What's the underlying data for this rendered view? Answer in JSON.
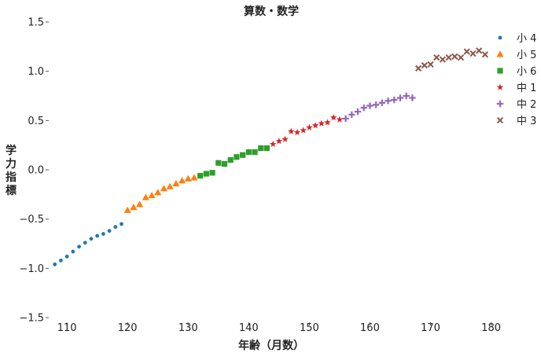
{
  "chart_data": {
    "type": "scatter",
    "title": "算数・数学",
    "xlabel": "年齢（月数）",
    "ylabel": "学力指標",
    "xlim": [
      107,
      182
    ],
    "ylim": [
      -1.5,
      1.5
    ],
    "xticks": [
      110,
      120,
      130,
      140,
      150,
      160,
      170,
      180
    ],
    "xtick_labels": [
      "110",
      "120",
      "130",
      "140",
      "150",
      "160",
      "170",
      "180"
    ],
    "yticks": [
      1.5,
      1.0,
      0.5,
      0.0,
      -0.5,
      -1.0,
      -1.5
    ],
    "ytick_labels": [
      "1.5",
      "1.0",
      "0.5",
      "0.0",
      "−0.5",
      "−1.0",
      "−1.5"
    ],
    "grid": false,
    "legend_position": "top-right",
    "series": [
      {
        "name": "小 4",
        "marker": "circle",
        "color": "#1f77b4",
        "x": [
          108,
          109,
          110,
          111,
          112,
          113,
          114,
          115,
          116,
          117,
          118,
          119
        ],
        "y": [
          -0.96,
          -0.92,
          -0.88,
          -0.83,
          -0.78,
          -0.74,
          -0.7,
          -0.67,
          -0.65,
          -0.62,
          -0.58,
          -0.55
        ]
      },
      {
        "name": "小 5",
        "marker": "triangle",
        "color": "#ff7f0e",
        "x": [
          120,
          121,
          122,
          123,
          124,
          125,
          126,
          127,
          128,
          129,
          130,
          131
        ],
        "y": [
          -0.41,
          -0.38,
          -0.35,
          -0.28,
          -0.26,
          -0.23,
          -0.19,
          -0.17,
          -0.14,
          -0.11,
          -0.09,
          -0.08
        ]
      },
      {
        "name": "小 6",
        "marker": "square",
        "color": "#2ca02c",
        "x": [
          132,
          133,
          134,
          135,
          136,
          137,
          138,
          139,
          140,
          141,
          142,
          143
        ],
        "y": [
          -0.06,
          -0.04,
          -0.03,
          0.07,
          0.06,
          0.1,
          0.13,
          0.15,
          0.18,
          0.18,
          0.22,
          0.22
        ]
      },
      {
        "name": "中 1",
        "marker": "star",
        "color": "#d62728",
        "x": [
          144,
          145,
          146,
          147,
          148,
          149,
          150,
          151,
          152,
          153,
          154,
          155
        ],
        "y": [
          0.26,
          0.29,
          0.31,
          0.39,
          0.38,
          0.4,
          0.43,
          0.45,
          0.47,
          0.48,
          0.53,
          0.51
        ]
      },
      {
        "name": "中 2",
        "marker": "plus",
        "color": "#9467bd",
        "x": [
          156,
          157,
          158,
          159,
          160,
          161,
          162,
          163,
          164,
          165,
          166,
          167
        ],
        "y": [
          0.52,
          0.56,
          0.59,
          0.63,
          0.65,
          0.66,
          0.68,
          0.7,
          0.71,
          0.73,
          0.75,
          0.73
        ]
      },
      {
        "name": "中 3",
        "marker": "x",
        "color": "#8c564b",
        "x": [
          168,
          169,
          170,
          171,
          172,
          173,
          174,
          175,
          176,
          177,
          178,
          179
        ],
        "y": [
          1.03,
          1.06,
          1.07,
          1.14,
          1.12,
          1.14,
          1.15,
          1.14,
          1.2,
          1.18,
          1.21,
          1.17
        ]
      }
    ]
  }
}
